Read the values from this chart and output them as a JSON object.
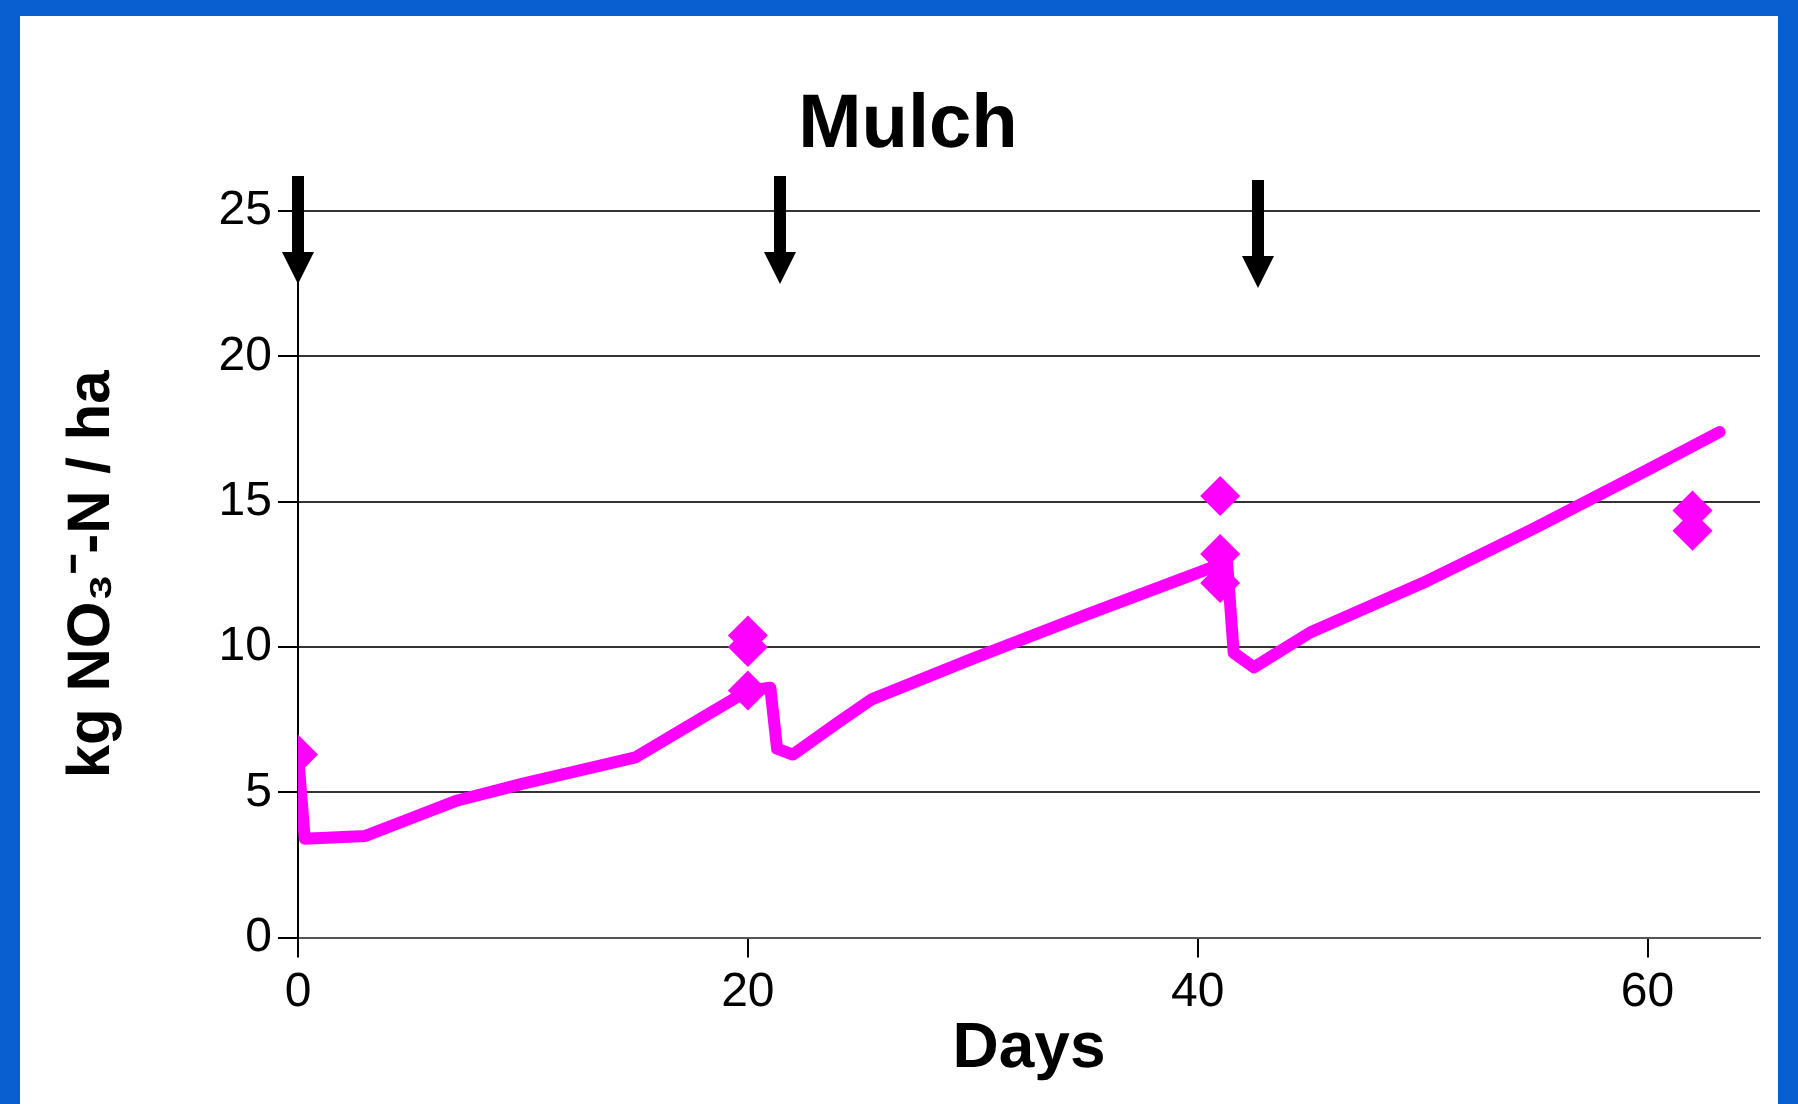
{
  "chart_data": {
    "type": "line",
    "title": "Mulch",
    "xlabel": "Days",
    "ylabel": "kg NO₃⁻-N / ha",
    "xlim": [
      0,
      65
    ],
    "xticks": [
      0,
      20,
      40,
      60
    ],
    "ylim": [
      0,
      25
    ],
    "yticks": [
      0,
      5,
      10,
      15,
      20,
      25
    ],
    "grid": "y",
    "legend": false,
    "series": [
      {
        "color": "#ff00ff",
        "marker": "none",
        "line_style": "solid",
        "x": [
          0,
          0.3,
          3,
          5,
          7,
          10,
          15,
          20,
          21,
          21.3,
          22,
          24,
          25.5,
          30,
          35,
          40.5,
          41.3,
          41.6,
          42.5,
          45,
          50,
          55,
          60,
          63.2
        ],
        "values": [
          6.3,
          3.4,
          3.5,
          4.1,
          4.7,
          5.3,
          6.2,
          8.5,
          8.6,
          6.5,
          6.3,
          7.4,
          8.2,
          9.6,
          11.1,
          12.7,
          13.0,
          9.8,
          9.3,
          10.5,
          12.2,
          14.1,
          16.1,
          17.4
        ]
      },
      {
        "type": "scatter",
        "color": "#ff00ff",
        "marker": "diamond",
        "x": [
          0,
          20,
          20,
          20,
          41,
          41,
          41,
          62,
          62
        ],
        "values": [
          6.3,
          10.4,
          10.0,
          8.5,
          15.2,
          13.2,
          12.2,
          14.7,
          14.0
        ]
      }
    ]
  }
}
